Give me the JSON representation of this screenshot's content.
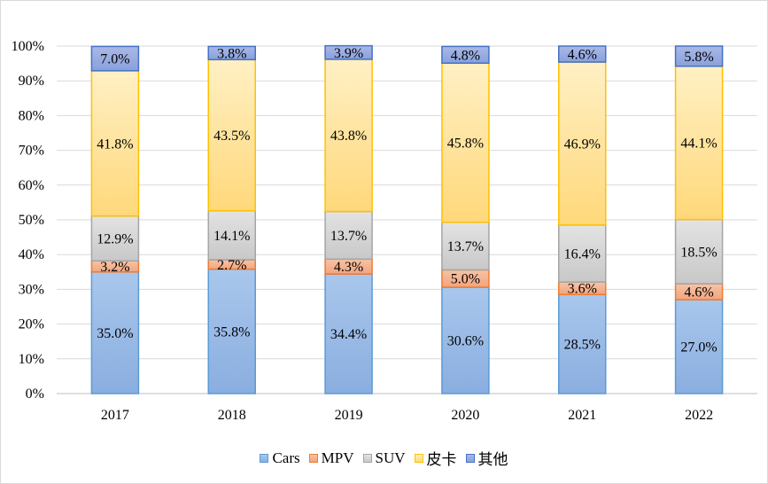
{
  "chart_data": {
    "type": "bar",
    "stacked": true,
    "title": "",
    "xlabel": "",
    "ylabel": "",
    "ylim": [
      0,
      100
    ],
    "yticks": [
      "0%",
      "10%",
      "20%",
      "30%",
      "40%",
      "50%",
      "60%",
      "70%",
      "80%",
      "90%",
      "100%"
    ],
    "grid": true,
    "legend_position": "bottom",
    "categories": [
      "2017",
      "2018",
      "2019",
      "2020",
      "2021",
      "2022"
    ],
    "series": [
      {
        "name": "Cars",
        "values": [
          35.0,
          35.8,
          34.4,
          30.6,
          28.5,
          27.0
        ],
        "labels": [
          "35.0%",
          "35.8%",
          "34.4%",
          "30.6%",
          "28.5%",
          "27.0%"
        ],
        "fill_top": "#a9c7ec",
        "fill_bottom": "#8aaee0",
        "stroke": "#5b9bd5"
      },
      {
        "name": "MPV",
        "values": [
          3.2,
          2.7,
          4.3,
          5.0,
          3.6,
          4.6
        ],
        "labels": [
          "3.2%",
          "2.7%",
          "4.3%",
          "5.0%",
          "3.6%",
          "4.6%"
        ],
        "fill_top": "#f6c4a6",
        "fill_bottom": "#f2a47e",
        "stroke": "#ed7d31"
      },
      {
        "name": "SUV",
        "values": [
          12.9,
          14.1,
          13.7,
          13.7,
          16.4,
          18.5
        ],
        "labels": [
          "12.9%",
          "14.1%",
          "13.7%",
          "13.7%",
          "16.4%",
          "18.5%"
        ],
        "fill_top": "#e3e3e3",
        "fill_bottom": "#c8c8c8",
        "stroke": "#a5a5a5"
      },
      {
        "name": "皮卡",
        "values": [
          41.8,
          43.5,
          43.8,
          45.8,
          46.9,
          44.1
        ],
        "labels": [
          "41.8%",
          "43.5%",
          "43.8%",
          "45.8%",
          "46.9%",
          "44.1%"
        ],
        "fill_top": "#fff0c4",
        "fill_bottom": "#ffd87a",
        "stroke": "#ffc000"
      },
      {
        "name": "其他",
        "values": [
          7.0,
          3.8,
          3.9,
          4.8,
          4.6,
          5.8
        ],
        "labels": [
          "7.0%",
          "3.8%",
          "3.9%",
          "4.8%",
          "4.6%",
          "5.8%"
        ],
        "fill_top": "#a9b9e6",
        "fill_bottom": "#8aa0dc",
        "stroke": "#4472c4"
      }
    ]
  }
}
